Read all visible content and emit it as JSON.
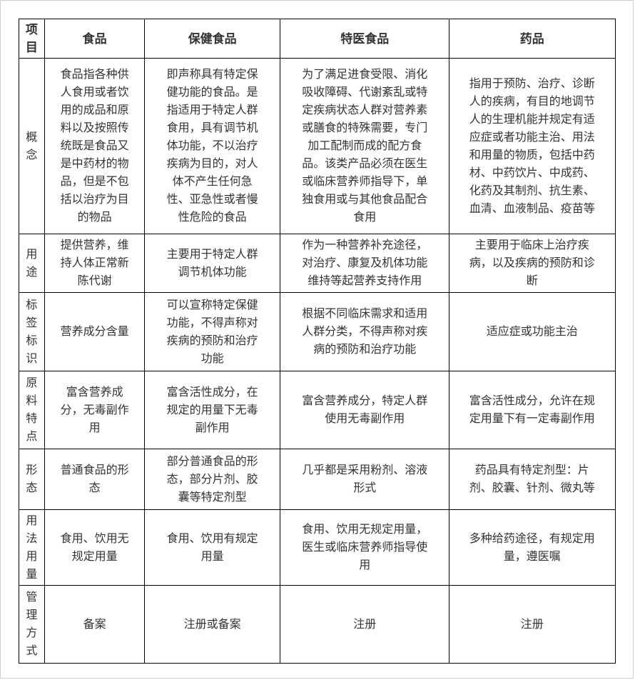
{
  "table": {
    "header": {
      "corner": "项目",
      "columns": [
        "食品",
        "保健食品",
        "特医食品",
        "药品"
      ]
    },
    "rows": [
      {
        "label": "概念",
        "cells": [
          "食品指各种供人食用或者饮用的成品和原料以及按照传统既是食品又是中药材的物品，但是不包括以治疗为目的物品",
          "即声称具有特定保健功能的食品。是指适用于特定人群食用，具有调节机体功能，不以治疗疾病为目的，对人体不产生任何急性、亚急性或者慢性危险的食品",
          "为了满足进食受限、消化吸收障碍、代谢紊乱或特定疾病状态人群对营养素或膳食的特殊需要，专门加工配制而成的配方食品。该类产品必须在医生或临床营养师指导下，单独食用或与其他食品配合食用",
          "指用于预防、治疗、诊断人的疾病，有目的地调节人的生理机能并规定有适应症或者功能主治、用法和用量的物质，包括中药材、中药饮片、中成药、化药及其制剂、抗生素、血清、血液制品、疫苗等"
        ]
      },
      {
        "label": "用途",
        "cells": [
          "提供营养，维持人体正常新陈代谢",
          "主要用于特定人群调节机体功能",
          "作为一种营养补充途径，对治疗、康复及机体功能维持等起营养支持作用",
          "主要用于临床上治疗疾病，以及疾病的预防和诊断"
        ]
      },
      {
        "label": "标签标识",
        "cells": [
          "营养成分含量",
          "可以宣称特定保健功能，不得声称对疾病的预防和治疗功能",
          "根据不同临床需求和适用人群分类，不得声称对疾病的预防和治疗功能",
          "适应症或功能主治"
        ]
      },
      {
        "label": "原料特点",
        "cells": [
          "富含营养成分，无毒副作用",
          "富含活性成分，在规定的用量下无毒副作用",
          "富含营养成分，特定人群使用无毒副作用",
          "富含活性成分，允许在规定用量下有一定毒副作用"
        ]
      },
      {
        "label": "形态",
        "cells": [
          "普通食品的形态",
          "部分普通食品的形态，部分片剂、胶囊等特定剂型",
          "几乎都是采用粉剂、溶液形式",
          "药品具有特定剂型：片剂、胶囊、针剂、微丸等"
        ]
      },
      {
        "label": "用法用量",
        "cells": [
          "食用、饮用无规定用量",
          "食用、饮用有规定用量",
          "食用、饮用无规定用量，医生或临床营养师指导使用",
          "多种给药途径，有规定用量，遵医嘱"
        ]
      },
      {
        "label": "管理方式",
        "cells": [
          "备案",
          "注册或备案",
          "注册",
          "注册"
        ]
      }
    ]
  }
}
